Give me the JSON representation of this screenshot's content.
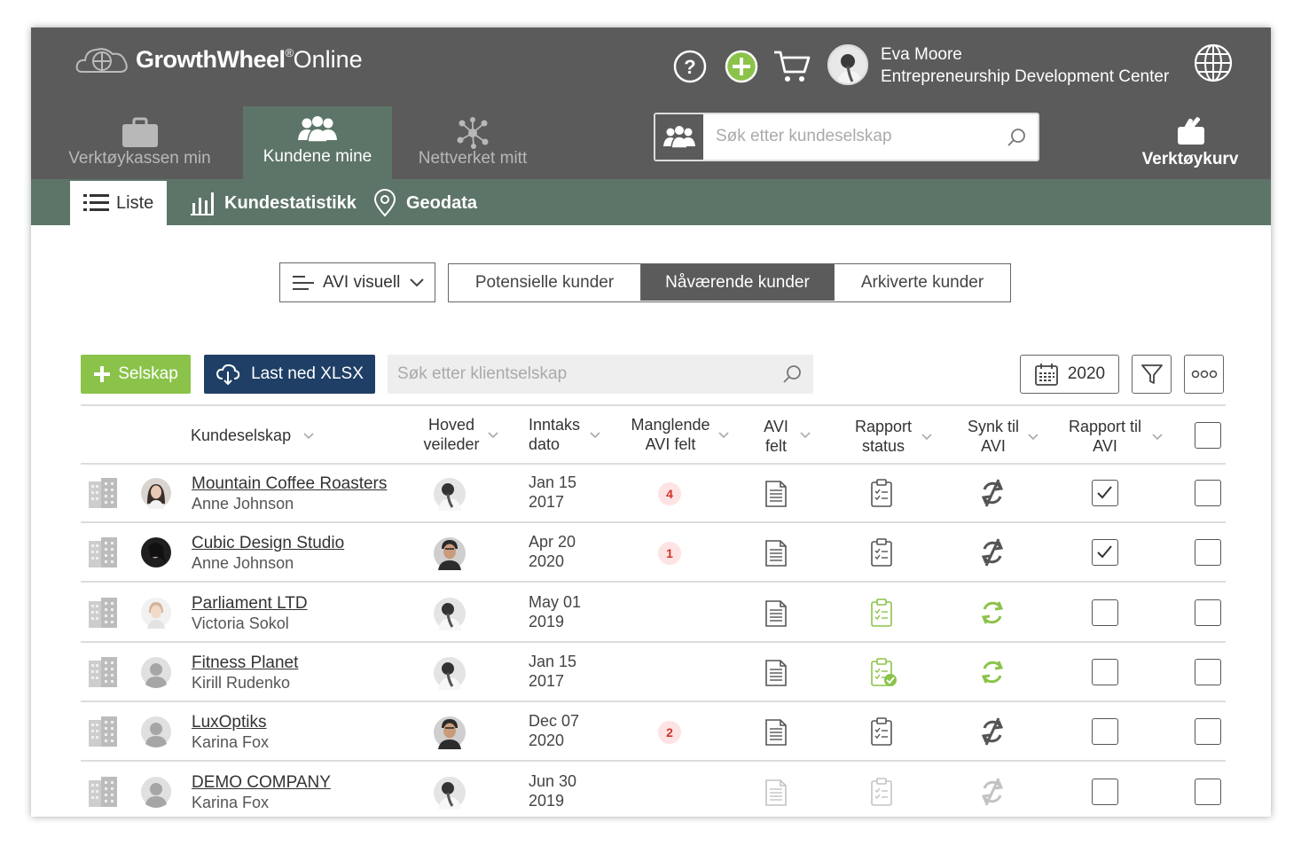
{
  "header": {
    "brand": "GrowthWheel",
    "brand_sup": "®",
    "brand_suffix": "Online",
    "user_name": "Eva Moore",
    "user_org": "Entrepreneurship Development Center",
    "icons": [
      "help-icon",
      "add-icon",
      "cart-icon",
      "avatar",
      "globe-icon"
    ]
  },
  "nav": {
    "items": [
      {
        "label": "Verktøykassen min",
        "icon": "briefcase-icon"
      },
      {
        "label": "Kundene mine",
        "icon": "group-icon"
      },
      {
        "label": "Nettverket mitt",
        "icon": "network-icon"
      }
    ],
    "search_placeholder": "Søk etter kundeselskap",
    "toolcart_label": "Verktøykurv"
  },
  "subnav": {
    "tabs": [
      {
        "label": "Liste",
        "icon": "list-icon"
      },
      {
        "label": "Kundestatistikk",
        "icon": "bar-chart-icon"
      },
      {
        "label": "Geodata",
        "icon": "location-pin-icon"
      }
    ]
  },
  "view": {
    "dropdown_label": "AVI visuell",
    "segments": [
      "Potensielle kunder",
      "Nåværende kunder",
      "Arkiverte kunder"
    ],
    "active_segment": "Nåværende kunder"
  },
  "toolbar": {
    "add_label": "Selskap",
    "xlsx_label": "Last ned XLSX",
    "search_placeholder": "Søk etter klientselskap",
    "year": "2020"
  },
  "table": {
    "columns": [
      {
        "line1": "Kundeselskap",
        "line2": ""
      },
      {
        "line1": "Hoved",
        "line2": "veileder"
      },
      {
        "line1": "Inntaks",
        "line2": "dato"
      },
      {
        "line1": "Manglende",
        "line2": "AVI felt"
      },
      {
        "line1": "AVI",
        "line2": "felt"
      },
      {
        "line1": "Rapport",
        "line2": "status"
      },
      {
        "line1": "Synk til",
        "line2": "AVI"
      },
      {
        "line1": "Rapport til",
        "line2": "AVI"
      }
    ],
    "rows": [
      {
        "company": "Mountain Coffee Roasters",
        "contact": "Anne Johnson",
        "date_md": "Jan 15",
        "date_y": "2017",
        "missing": "4",
        "report_status": "pending",
        "sync": "off",
        "report_to_avi": true
      },
      {
        "company": "Cubic Design Studio",
        "contact": "Anne Johnson",
        "date_md": "Apr 20",
        "date_y": "2020",
        "missing": "1",
        "report_status": "pending",
        "sync": "off",
        "report_to_avi": true
      },
      {
        "company": "Parliament LTD",
        "contact": "Victoria Sokol",
        "date_md": "May 01",
        "date_y": "2019",
        "missing": "",
        "report_status": "ready",
        "sync": "on",
        "report_to_avi": false
      },
      {
        "company": "Fitness Planet",
        "contact": "Kirill Rudenko",
        "date_md": "Jan 15",
        "date_y": "2017",
        "missing": "",
        "report_status": "done",
        "sync": "on",
        "report_to_avi": false
      },
      {
        "company": "LuxOptiks",
        "contact": "Karina Fox",
        "date_md": "Dec 07",
        "date_y": "2020",
        "missing": "2",
        "report_status": "pending",
        "sync": "off",
        "report_to_avi": false
      },
      {
        "company": "DEMO COMPANY",
        "contact": "Karina Fox",
        "date_md": "Jun 30",
        "date_y": "2019",
        "missing": "",
        "report_status": "disabled",
        "sync": "disabled",
        "report_to_avi": false
      }
    ]
  },
  "colors": {
    "topbar": "#5b5b5b",
    "subbar": "#5d7568",
    "green": "#8bc34a",
    "navy": "#1f3f66",
    "badge": "#d0342c"
  }
}
